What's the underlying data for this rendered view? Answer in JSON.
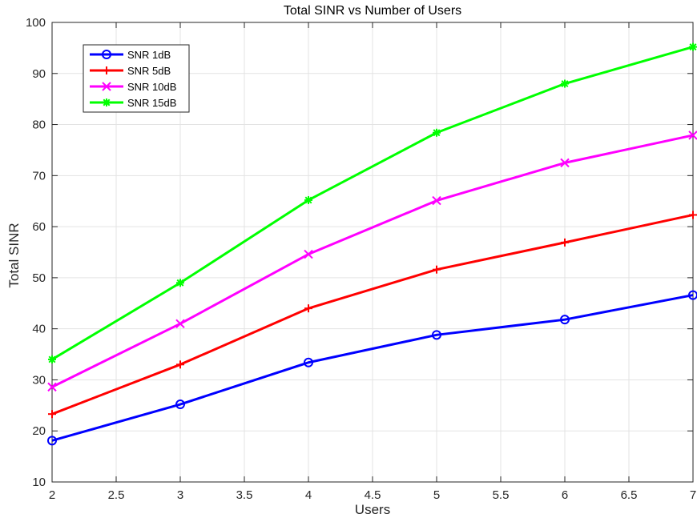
{
  "chart_data": {
    "type": "line",
    "title": "Total SINR vs Number of Users",
    "xlabel": "Users",
    "ylabel": "Total SINR",
    "xlim": [
      2,
      7
    ],
    "ylim": [
      10,
      100
    ],
    "xticks": [
      "2",
      "2.5",
      "3",
      "3.5",
      "4",
      "4.5",
      "5",
      "5.5",
      "6",
      "6.5",
      "7"
    ],
    "yticks": [
      "10",
      "20",
      "30",
      "40",
      "50",
      "60",
      "70",
      "80",
      "90",
      "100"
    ],
    "grid": true,
    "legend_position": "top-left",
    "x": [
      2,
      3,
      4,
      5,
      6,
      7
    ],
    "series": [
      {
        "name": "SNR 1dB",
        "values": [
          18.1,
          25.2,
          33.4,
          38.8,
          41.8,
          46.6
        ],
        "color": "#0000ff",
        "marker": "circle"
      },
      {
        "name": "SNR 5dB",
        "values": [
          23.3,
          33.0,
          44.0,
          51.6,
          56.9,
          62.3
        ],
        "color": "#ff0000",
        "marker": "plus"
      },
      {
        "name": "SNR 10dB",
        "values": [
          28.6,
          41.0,
          54.6,
          65.1,
          72.5,
          77.9
        ],
        "color": "#ff00ff",
        "marker": "x"
      },
      {
        "name": "SNR 15dB",
        "values": [
          34.0,
          49.0,
          65.2,
          78.4,
          88.0,
          95.2
        ],
        "color": "#00ff00",
        "marker": "asterisk"
      }
    ]
  }
}
